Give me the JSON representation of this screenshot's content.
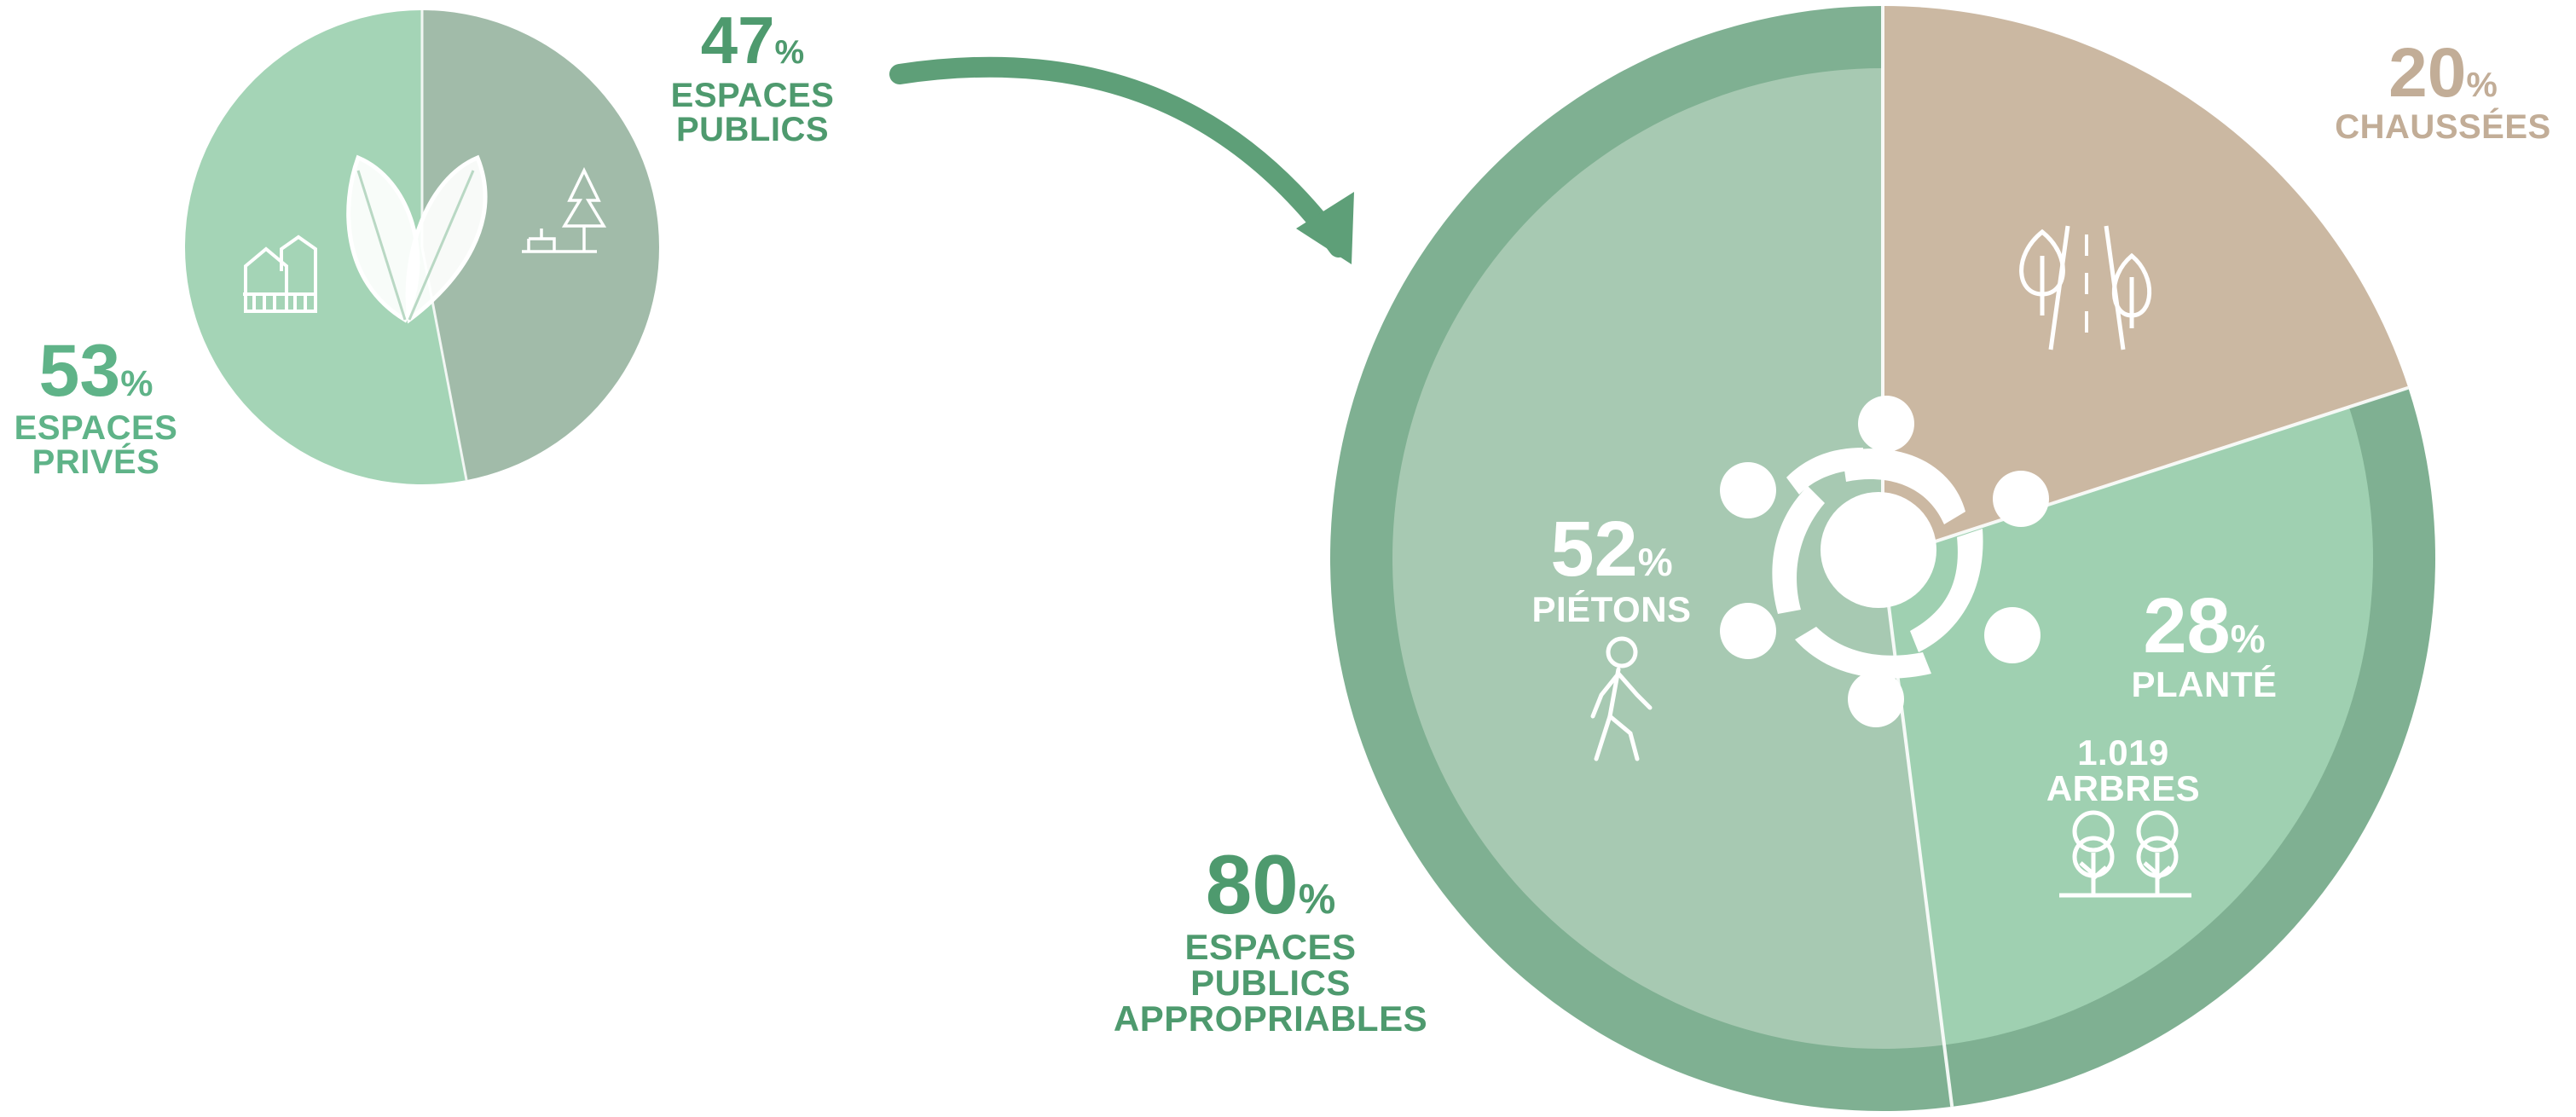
{
  "colors": {
    "private_green": "#a4d4b6",
    "public_grey_green": "#a1bba9",
    "dark_green": "#4e9a6e",
    "ring_green": "#7fb092",
    "pedestrian_green": "#a7c9b2",
    "planted_green": "#9fd0b1",
    "road_beige": "#cbb8a2",
    "road_text": "#c2ad97",
    "white": "#ffffff"
  },
  "icons": {
    "small_left": "houses-icon",
    "small_center": "leaf-icon",
    "small_right": "park-bench-tree-icon",
    "arrow": "curved-arrow-icon",
    "center": "community-circle-icon",
    "pedestrians": "walking-person-icon",
    "roads": "road-trees-icon",
    "planted": "trees-icon"
  },
  "chart_data": [
    {
      "type": "pie",
      "slices": [
        {
          "key": "private",
          "value": 53,
          "unit": "%",
          "label_lines": [
            "ESPACES",
            "PRIVÉS"
          ]
        },
        {
          "key": "public",
          "value": 47,
          "unit": "%",
          "label_lines": [
            "ESPACES",
            "PUBLICS"
          ]
        }
      ]
    },
    {
      "type": "pie",
      "ring": {
        "value": 80,
        "unit": "%",
        "label_lines": [
          "ESPACES",
          "PUBLICS",
          "APPROPRIABLES"
        ]
      },
      "slices": [
        {
          "key": "roads",
          "value": 20,
          "unit": "%",
          "label_lines": [
            "CHAUSSÉES"
          ]
        },
        {
          "key": "planted",
          "value": 28,
          "unit": "%",
          "label_lines": [
            "PLANTÉ"
          ]
        },
        {
          "key": "pedestrians",
          "value": 52,
          "unit": "%",
          "label_lines": [
            "PIÉTONS"
          ]
        }
      ],
      "annotation": {
        "value": "1.019",
        "text": "ARBRES"
      }
    }
  ]
}
